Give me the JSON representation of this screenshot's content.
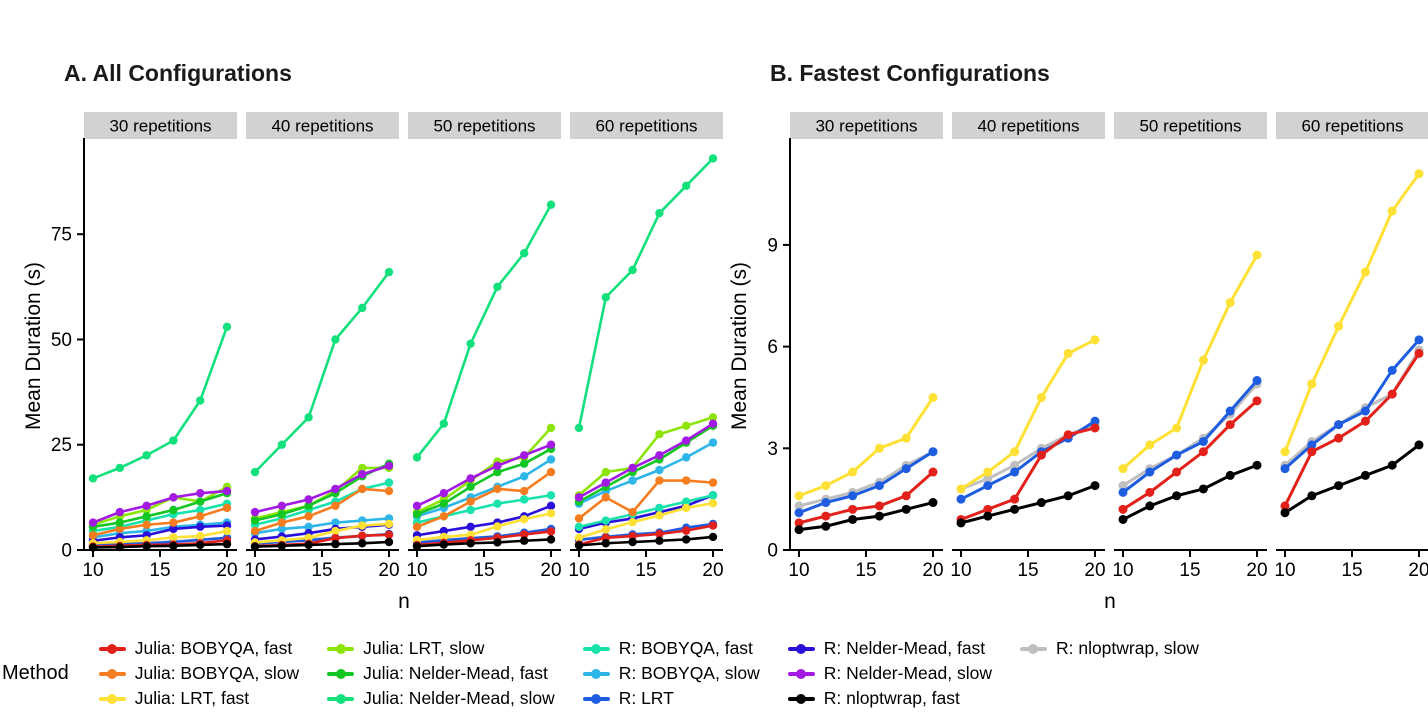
{
  "legend": {
    "title": "Method",
    "items": [
      {
        "label": "Julia: BOBYQA, fast",
        "color": "#e3211b"
      },
      {
        "label": "Julia: BOBYQA, slow",
        "color": "#f57d1f"
      },
      {
        "label": "Julia: LRT, fast",
        "color": "#ffe135"
      },
      {
        "label": "Julia: LRT, slow",
        "color": "#8de408"
      },
      {
        "label": "Julia: Nelder-Mead, fast",
        "color": "#14c622"
      },
      {
        "label": "Julia: Nelder-Mead, slow",
        "color": "#12e07c"
      },
      {
        "label": "R: BOBYQA, fast",
        "color": "#19e2ac"
      },
      {
        "label": "R: BOBYQA, slow",
        "color": "#2eb6e9"
      },
      {
        "label": "R: LRT",
        "color": "#1f5de0"
      },
      {
        "label": "R: Nelder-Mead, fast",
        "color": "#2a0fd9"
      },
      {
        "label": "R: Nelder-Mead, slow",
        "color": "#a21ae3"
      },
      {
        "label": "R: nloptwrap, fast",
        "color": "#000000"
      },
      {
        "label": "R: nloptwrap, slow",
        "color": "#bfbfbf"
      }
    ]
  },
  "chart_data": [
    {
      "type": "line",
      "title": "A. All Configurations",
      "xlabel": "n",
      "ylabel": "Mean Duration (s)",
      "x": [
        10,
        12,
        14,
        16,
        18,
        20
      ],
      "xticks": [
        10,
        15,
        20
      ],
      "yticks": [
        0,
        25,
        50,
        75
      ],
      "ylim": [
        0,
        95
      ],
      "strip_background": "#d2d2d2",
      "facets": [
        {
          "label": "30 repetitions",
          "series": [
            {
              "name": "Julia: BOBYQA, fast",
              "values": [
                0.8,
                1,
                1.2,
                1.3,
                1.6,
                2.3
              ]
            },
            {
              "name": "Julia: BOBYQA, slow",
              "values": [
                3.5,
                5,
                6,
                6.5,
                8,
                10
              ]
            },
            {
              "name": "Julia: LRT, fast",
              "values": [
                1.6,
                1.9,
                2.3,
                3,
                3.3,
                4.5
              ]
            },
            {
              "name": "Julia: LRT, slow",
              "values": [
                6,
                8,
                9.5,
                12.5,
                11.5,
                15
              ]
            },
            {
              "name": "Julia: Nelder-Mead, fast",
              "values": [
                5.5,
                6.5,
                8,
                9.5,
                11.5,
                13.5
              ]
            },
            {
              "name": "Julia: Nelder-Mead, slow",
              "values": [
                17,
                19.5,
                22.5,
                26,
                35.5,
                53
              ]
            },
            {
              "name": "R: BOBYQA, fast",
              "values": [
                4.5,
                5.5,
                7,
                8.5,
                9.5,
                11
              ]
            },
            {
              "name": "R: BOBYQA, slow",
              "values": [
                3,
                4,
                4.5,
                5.5,
                6,
                6.5
              ]
            },
            {
              "name": "R: LRT",
              "values": [
                1.1,
                1.4,
                1.6,
                1.9,
                2.4,
                2.9
              ]
            },
            {
              "name": "R: Nelder-Mead, fast",
              "values": [
                2.2,
                3,
                3.5,
                5,
                5.5,
                5.8
              ]
            },
            {
              "name": "R: Nelder-Mead, slow",
              "values": [
                6.5,
                9,
                10.5,
                12.5,
                13.5,
                14
              ]
            },
            {
              "name": "R: nloptwrap, fast",
              "values": [
                0.6,
                0.7,
                0.9,
                1,
                1.2,
                1.4
              ]
            },
            {
              "name": "R: nloptwrap, slow",
              "values": [
                1.3,
                1.5,
                1.7,
                2,
                2.5,
                2.9
              ]
            }
          ]
        },
        {
          "label": "40 repetitions",
          "series": [
            {
              "name": "Julia: BOBYQA, fast",
              "values": [
                0.9,
                1.2,
                1.5,
                2.8,
                3.4,
                3.6
              ]
            },
            {
              "name": "Julia: BOBYQA, slow",
              "values": [
                4.5,
                6.5,
                8,
                10.5,
                14.5,
                14
              ]
            },
            {
              "name": "Julia: LRT, fast",
              "values": [
                1.8,
                2.3,
                2.9,
                4.5,
                5.8,
                6.2
              ]
            },
            {
              "name": "Julia: LRT, slow",
              "values": [
                7.5,
                9,
                10.5,
                14,
                19.5,
                19.5
              ]
            },
            {
              "name": "Julia: Nelder-Mead, fast",
              "values": [
                7,
                8.5,
                10.5,
                13.5,
                17.5,
                20.5
              ]
            },
            {
              "name": "Julia: Nelder-Mead, slow",
              "values": [
                18.5,
                25,
                31.5,
                50,
                57.5,
                66
              ]
            },
            {
              "name": "R: BOBYQA, fast",
              "values": [
                6,
                7.5,
                9.5,
                11.5,
                14.5,
                16
              ]
            },
            {
              "name": "R: BOBYQA, slow",
              "values": [
                4,
                5,
                5.5,
                6.5,
                7,
                7.5
              ]
            },
            {
              "name": "R: LRT",
              "values": [
                1.5,
                1.9,
                2.3,
                2.9,
                3.3,
                3.8
              ]
            },
            {
              "name": "R: Nelder-Mead, fast",
              "values": [
                2.5,
                3.2,
                4,
                5,
                5.5,
                6
              ]
            },
            {
              "name": "R: Nelder-Mead, slow",
              "values": [
                9,
                10.5,
                12,
                14.5,
                18,
                20
              ]
            },
            {
              "name": "R: nloptwrap, fast",
              "values": [
                0.8,
                1,
                1.2,
                1.4,
                1.6,
                1.9
              ]
            },
            {
              "name": "R: nloptwrap, slow",
              "values": [
                1.8,
                2.1,
                2.5,
                3,
                3.4,
                3.7
              ]
            }
          ]
        },
        {
          "label": "50 repetitions",
          "series": [
            {
              "name": "Julia: BOBYQA, fast",
              "values": [
                1.2,
                1.7,
                2.3,
                2.9,
                3.7,
                4.4
              ]
            },
            {
              "name": "Julia: BOBYQA, slow",
              "values": [
                5.5,
                8,
                11.5,
                14.5,
                14,
                18.5
              ]
            },
            {
              "name": "Julia: LRT, fast",
              "values": [
                2.4,
                3.1,
                3.6,
                5.6,
                7.3,
                8.7
              ]
            },
            {
              "name": "Julia: LRT, slow",
              "values": [
                9,
                12,
                16.5,
                21,
                22,
                29
              ]
            },
            {
              "name": "Julia: Nelder-Mead, fast",
              "values": [
                8.5,
                11,
                15,
                18.5,
                20.5,
                24
              ]
            },
            {
              "name": "Julia: Nelder-Mead, slow",
              "values": [
                22,
                30,
                49,
                62.5,
                70.5,
                82
              ]
            },
            {
              "name": "R: BOBYQA, fast",
              "values": [
                6.5,
                8,
                9.5,
                11,
                12,
                13
              ]
            },
            {
              "name": "R: BOBYQA, slow",
              "values": [
                8,
                10,
                12.5,
                15,
                17.5,
                21.5
              ]
            },
            {
              "name": "R: LRT",
              "values": [
                1.7,
                2.3,
                2.8,
                3.2,
                4.1,
                5
              ]
            },
            {
              "name": "R: Nelder-Mead, fast",
              "values": [
                3.5,
                4.5,
                5.5,
                6.5,
                8,
                10.5
              ]
            },
            {
              "name": "R: Nelder-Mead, slow",
              "values": [
                10.5,
                13.5,
                17,
                20,
                22.5,
                25
              ]
            },
            {
              "name": "R: nloptwrap, fast",
              "values": [
                0.9,
                1.3,
                1.6,
                1.8,
                2.2,
                2.5
              ]
            },
            {
              "name": "R: nloptwrap, slow",
              "values": [
                1.9,
                2.4,
                2.8,
                3.3,
                4,
                4.9
              ]
            }
          ]
        },
        {
          "label": "60 repetitions",
          "series": [
            {
              "name": "Julia: BOBYQA, fast",
              "values": [
                1.3,
                2.9,
                3.3,
                3.8,
                4.6,
                5.8
              ]
            },
            {
              "name": "Julia: BOBYQA, slow",
              "values": [
                7.5,
                12.5,
                9,
                16.5,
                16.5,
                16
              ]
            },
            {
              "name": "Julia: LRT, fast",
              "values": [
                2.9,
                4.9,
                6.6,
                8.2,
                10,
                11.1
              ]
            },
            {
              "name": "Julia: LRT, slow",
              "values": [
                13,
                18.5,
                19.5,
                27.5,
                29.5,
                31.5
              ]
            },
            {
              "name": "Julia: Nelder-Mead, fast",
              "values": [
                11.5,
                15,
                18.5,
                21.5,
                25.5,
                29.5
              ]
            },
            {
              "name": "Julia: Nelder-Mead, slow",
              "values": [
                29,
                60,
                66.5,
                80,
                86.5,
                93
              ]
            },
            {
              "name": "R: BOBYQA, fast",
              "values": [
                5.5,
                7,
                8.5,
                10,
                11.5,
                13
              ]
            },
            {
              "name": "R: BOBYQA, slow",
              "values": [
                11,
                14,
                16.5,
                19,
                22,
                25.5
              ]
            },
            {
              "name": "R: LRT",
              "values": [
                2.4,
                3.1,
                3.7,
                4.1,
                5.3,
                6.2
              ]
            },
            {
              "name": "R: Nelder-Mead, fast",
              "values": [
                5,
                6.5,
                7.5,
                9,
                10.5,
                13
              ]
            },
            {
              "name": "R: Nelder-Mead, slow",
              "values": [
                12.5,
                16,
                19.5,
                22.5,
                26,
                30
              ]
            },
            {
              "name": "R: nloptwrap, fast",
              "values": [
                1.1,
                1.6,
                1.9,
                2.2,
                2.5,
                3.1
              ]
            },
            {
              "name": "R: nloptwrap, slow",
              "values": [
                2.5,
                3.2,
                3.7,
                4.2,
                4.6,
                5.9
              ]
            }
          ]
        }
      ]
    },
    {
      "type": "line",
      "title": "B. Fastest Configurations",
      "xlabel": "n",
      "ylabel": "Mean Duration (s)",
      "x": [
        10,
        12,
        14,
        16,
        18,
        20
      ],
      "xticks": [
        10,
        15,
        20
      ],
      "yticks": [
        0,
        3,
        6,
        9
      ],
      "ylim": [
        0,
        11.8
      ],
      "strip_background": "#d2d2d2",
      "facets": [
        {
          "label": "30 repetitions",
          "series": [
            {
              "name": "Julia: BOBYQA, fast",
              "values": [
                0.8,
                1,
                1.2,
                1.3,
                1.6,
                2.3
              ]
            },
            {
              "name": "Julia: LRT, fast",
              "values": [
                1.6,
                1.9,
                2.3,
                3,
                3.3,
                4.5
              ]
            },
            {
              "name": "R: LRT",
              "values": [
                1.1,
                1.4,
                1.6,
                1.9,
                2.4,
                2.9
              ]
            },
            {
              "name": "R: nloptwrap, fast",
              "values": [
                0.6,
                0.7,
                0.9,
                1,
                1.2,
                1.4
              ]
            },
            {
              "name": "R: nloptwrap, slow",
              "values": [
                1.3,
                1.5,
                1.7,
                2,
                2.5,
                2.9
              ]
            }
          ]
        },
        {
          "label": "40 repetitions",
          "series": [
            {
              "name": "Julia: BOBYQA, fast",
              "values": [
                0.9,
                1.2,
                1.5,
                2.8,
                3.4,
                3.6
              ]
            },
            {
              "name": "Julia: LRT, fast",
              "values": [
                1.8,
                2.3,
                2.9,
                4.5,
                5.8,
                6.2
              ]
            },
            {
              "name": "R: LRT",
              "values": [
                1.5,
                1.9,
                2.3,
                2.9,
                3.3,
                3.8
              ]
            },
            {
              "name": "R: nloptwrap, fast",
              "values": [
                0.8,
                1,
                1.2,
                1.4,
                1.6,
                1.9
              ]
            },
            {
              "name": "R: nloptwrap, slow",
              "values": [
                1.8,
                2.1,
                2.5,
                3,
                3.4,
                3.7
              ]
            }
          ]
        },
        {
          "label": "50 repetitions",
          "series": [
            {
              "name": "Julia: BOBYQA, fast",
              "values": [
                1.2,
                1.7,
                2.3,
                2.9,
                3.7,
                4.4
              ]
            },
            {
              "name": "Julia: LRT, fast",
              "values": [
                2.4,
                3.1,
                3.6,
                5.6,
                7.3,
                8.7
              ]
            },
            {
              "name": "R: LRT",
              "values": [
                1.7,
                2.3,
                2.8,
                3.2,
                4.1,
                5
              ]
            },
            {
              "name": "R: nloptwrap, fast",
              "values": [
                0.9,
                1.3,
                1.6,
                1.8,
                2.2,
                2.5
              ]
            },
            {
              "name": "R: nloptwrap, slow",
              "values": [
                1.9,
                2.4,
                2.8,
                3.3,
                4,
                4.9
              ]
            }
          ]
        },
        {
          "label": "60 repetitions",
          "series": [
            {
              "name": "Julia: BOBYQA, fast",
              "values": [
                1.3,
                2.9,
                3.3,
                3.8,
                4.6,
                5.8
              ]
            },
            {
              "name": "Julia: LRT, fast",
              "values": [
                2.9,
                4.9,
                6.6,
                8.2,
                10,
                11.1
              ]
            },
            {
              "name": "R: LRT",
              "values": [
                2.4,
                3.1,
                3.7,
                4.1,
                5.3,
                6.2
              ]
            },
            {
              "name": "R: nloptwrap, fast",
              "values": [
                1.1,
                1.6,
                1.9,
                2.2,
                2.5,
                3.1
              ]
            },
            {
              "name": "R: nloptwrap, slow",
              "values": [
                2.5,
                3.2,
                3.7,
                4.2,
                4.6,
                5.9
              ]
            }
          ]
        }
      ]
    }
  ]
}
